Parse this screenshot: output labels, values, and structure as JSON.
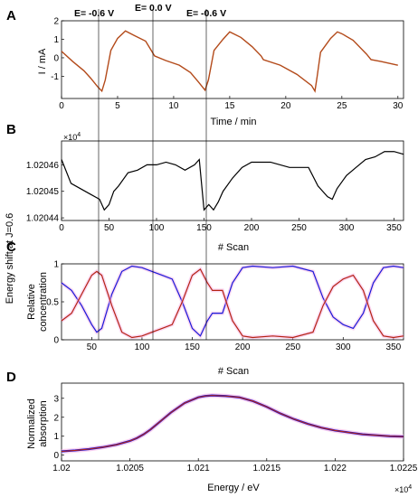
{
  "figure": {
    "colors": {
      "trace_orange": "#b34a1a",
      "black": "#000000",
      "blue": "#1a1ad9",
      "red": "#b52414",
      "spread": "#f7b2e6",
      "purple": "#7a2fa0"
    },
    "annotations": [
      "E= -0.6 V",
      "E= 0.0 V",
      "E= -0.6 V"
    ],
    "shared_ylabel": "Energy shift at J=0.6"
  },
  "chart_data": [
    {
      "panel": "A",
      "type": "line",
      "xlabel": "Time / min",
      "ylabel": "I / mA",
      "xlim": [
        0,
        30.5
      ],
      "ylim": [
        -2.2,
        2.0
      ],
      "xticks": [
        "0",
        "5",
        "10",
        "15",
        "20",
        "25",
        "30"
      ],
      "yticks": [
        "-1",
        "0",
        "1",
        "2"
      ],
      "series": [
        {
          "x": [
            0.0,
            1.0,
            2.0,
            2.6,
            3.2,
            3.6,
            3.9,
            4.4,
            5.0,
            5.7,
            6.5,
            7.5,
            8.3,
            9.3,
            10.5,
            11.5,
            12.2,
            12.8,
            13.1,
            13.6,
            14.4,
            15.0,
            16.0,
            17.0,
            17.8,
            18.0,
            19.5,
            21.0,
            22.3,
            22.6,
            22.8,
            23.1,
            24.0,
            24.6,
            25.0,
            26.0,
            27.2,
            27.6,
            28.5,
            30.0
          ],
          "y": [
            0.35,
            -0.2,
            -0.7,
            -1.1,
            -1.55,
            -1.8,
            -1.2,
            0.4,
            1.05,
            1.45,
            1.2,
            0.9,
            0.1,
            -0.15,
            -0.4,
            -0.8,
            -1.3,
            -1.75,
            -1.2,
            0.4,
            1.0,
            1.4,
            1.1,
            0.6,
            0.1,
            -0.1,
            -0.4,
            -0.9,
            -1.5,
            -1.8,
            -1.0,
            0.3,
            1.05,
            1.4,
            1.3,
            0.95,
            0.2,
            -0.1,
            -0.2,
            -0.4
          ]
        }
      ]
    },
    {
      "panel": "B",
      "type": "line",
      "xlabel": "# Scan",
      "ylabel": "",
      "y_multiplier": "×10^4",
      "xlim": [
        0,
        360
      ],
      "ylim": [
        1.020439,
        1.020469
      ],
      "xticks": [
        "0",
        "50",
        "100",
        "150",
        "200",
        "250",
        "300",
        "350"
      ],
      "yticks": [
        "1.02044",
        "1.02045",
        "1.02046"
      ],
      "series": [
        {
          "x": [
            0,
            10,
            20,
            30,
            40,
            45,
            50,
            55,
            60,
            70,
            80,
            90,
            100,
            110,
            120,
            130,
            140,
            145,
            150,
            155,
            160,
            165,
            170,
            180,
            190,
            200,
            220,
            240,
            260,
            270,
            280,
            285,
            290,
            300,
            310,
            320,
            330,
            340,
            350,
            360
          ],
          "y": [
            1.020462,
            1.020453,
            1.020451,
            1.020449,
            1.020447,
            1.020443,
            1.020445,
            1.02045,
            1.020452,
            1.020457,
            1.020458,
            1.02046,
            1.02046,
            1.020461,
            1.02046,
            1.020458,
            1.02046,
            1.020462,
            1.020443,
            1.020445,
            1.020443,
            1.020446,
            1.02045,
            1.020455,
            1.020459,
            1.020461,
            1.020461,
            1.020459,
            1.020459,
            1.020452,
            1.020448,
            1.020447,
            1.020451,
            1.020456,
            1.020459,
            1.020462,
            1.020463,
            1.020465,
            1.020465,
            1.020464
          ]
        }
      ]
    },
    {
      "panel": "C",
      "type": "line",
      "xlabel": "# Scan",
      "ylabel": "Relative concentration",
      "xlim": [
        20,
        360
      ],
      "ylim": [
        0,
        1
      ],
      "xticks": [
        "50",
        "100",
        "150",
        "200",
        "250",
        "300",
        "350"
      ],
      "yticks": [
        "0",
        "0.5",
        "1"
      ],
      "series": [
        {
          "color": "blue",
          "x": [
            20,
            30,
            40,
            50,
            55,
            60,
            70,
            80,
            90,
            100,
            110,
            120,
            130,
            140,
            150,
            158,
            165,
            170,
            180,
            190,
            200,
            210,
            230,
            250,
            270,
            280,
            290,
            300,
            310,
            320,
            330,
            340,
            350,
            360
          ],
          "y": [
            0.75,
            0.65,
            0.45,
            0.2,
            0.1,
            0.15,
            0.6,
            0.9,
            0.97,
            0.95,
            0.9,
            0.85,
            0.8,
            0.5,
            0.15,
            0.05,
            0.25,
            0.35,
            0.35,
            0.75,
            0.95,
            0.97,
            0.95,
            0.97,
            0.9,
            0.55,
            0.3,
            0.2,
            0.15,
            0.35,
            0.75,
            0.95,
            0.97,
            0.95
          ]
        },
        {
          "color": "red",
          "x": [
            20,
            30,
            40,
            50,
            55,
            60,
            70,
            80,
            90,
            100,
            110,
            120,
            130,
            140,
            150,
            158,
            165,
            170,
            180,
            190,
            200,
            210,
            230,
            250,
            270,
            280,
            290,
            300,
            310,
            320,
            330,
            340,
            350,
            360
          ],
          "y": [
            0.25,
            0.35,
            0.6,
            0.85,
            0.9,
            0.85,
            0.45,
            0.1,
            0.03,
            0.05,
            0.1,
            0.15,
            0.2,
            0.5,
            0.85,
            0.93,
            0.75,
            0.65,
            0.65,
            0.25,
            0.05,
            0.03,
            0.05,
            0.03,
            0.1,
            0.45,
            0.7,
            0.8,
            0.85,
            0.65,
            0.25,
            0.05,
            0.03,
            0.05
          ]
        }
      ]
    },
    {
      "panel": "D",
      "type": "line",
      "xlabel": "Energy / eV",
      "ylabel": "Normalized absorption",
      "x_multiplier": "×10^4",
      "xlim": [
        1.02,
        1.0225
      ],
      "ylim": [
        -0.3,
        3.8
      ],
      "xticks": [
        "1.02",
        "1.0205",
        "1.021",
        "1.0215",
        "1.022",
        "1.0225"
      ],
      "yticks": [
        "0",
        "1",
        "2",
        "3"
      ],
      "series": [
        {
          "x": [
            1.02,
            1.0201,
            1.0202,
            1.0203,
            1.0204,
            1.0205,
            1.02055,
            1.0206,
            1.02065,
            1.0207,
            1.02075,
            1.0208,
            1.0209,
            1.021,
            1.02105,
            1.0211,
            1.0212,
            1.0213,
            1.0214,
            1.0215,
            1.0216,
            1.0217,
            1.0218,
            1.0219,
            1.022,
            1.0221,
            1.0222,
            1.0223,
            1.0224,
            1.0225
          ],
          "y": [
            0.2,
            0.25,
            0.32,
            0.42,
            0.55,
            0.75,
            0.9,
            1.1,
            1.35,
            1.65,
            1.95,
            2.25,
            2.75,
            3.05,
            3.12,
            3.15,
            3.12,
            3.05,
            2.85,
            2.55,
            2.2,
            1.9,
            1.65,
            1.45,
            1.3,
            1.2,
            1.1,
            1.05,
            1.0,
            0.98
          ]
        }
      ]
    }
  ]
}
